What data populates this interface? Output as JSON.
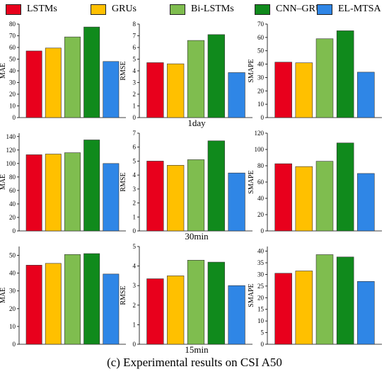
{
  "caption": "(c) Experimental results on CSI A50",
  "legend": [
    {
      "name": "LSTMs",
      "color": "#e8001c"
    },
    {
      "name": "GRUs",
      "color": "#ffc000"
    },
    {
      "name": "Bi-LSTMs",
      "color": "#7fbd4f"
    },
    {
      "name": "CNN–GRUs",
      "color": "#108a1c"
    },
    {
      "name": "EL-MTSA",
      "color": "#2f86e6"
    }
  ],
  "row_labels": [
    "1day",
    "30min",
    "15min"
  ],
  "chart_data": [
    {
      "type": "bar",
      "categories": [
        "LSTMs",
        "GRUs",
        "Bi-LSTMs",
        "CNN–GRUs",
        "EL-MTSA"
      ],
      "values": [
        57,
        59.5,
        69,
        77.5,
        48
      ],
      "ylabel": "MAE",
      "ylim": [
        0,
        80
      ],
      "yticks": [
        0,
        10,
        20,
        30,
        40,
        50,
        60,
        70,
        80
      ]
    },
    {
      "type": "bar",
      "categories": [
        "LSTMs",
        "GRUs",
        "Bi-LSTMs",
        "CNN–GRUs",
        "EL-MTSA"
      ],
      "values": [
        4.7,
        4.6,
        6.6,
        7.1,
        3.85
      ],
      "ylabel": "RMSE",
      "ylim": [
        0,
        8
      ],
      "yticks": [
        0,
        1,
        2,
        3,
        4,
        5,
        6,
        7,
        8
      ]
    },
    {
      "type": "bar",
      "categories": [
        "LSTMs",
        "GRUs",
        "Bi-LSTMs",
        "CNN–GRUs",
        "EL-MTSA"
      ],
      "values": [
        41.5,
        41,
        59,
        65,
        34
      ],
      "ylabel": "SMAPE",
      "ylim": [
        0,
        70
      ],
      "yticks": [
        0,
        10,
        20,
        30,
        40,
        50,
        60,
        70
      ]
    },
    {
      "type": "bar",
      "categories": [
        "LSTMs",
        "GRUs",
        "Bi-LSTMs",
        "CNN–GRUs",
        "EL-MTSA"
      ],
      "values": [
        113,
        114,
        116,
        135,
        100
      ],
      "ylabel": "MAE",
      "ylim": [
        0,
        145
      ],
      "yticks": [
        0,
        20,
        40,
        60,
        80,
        100,
        120,
        140
      ]
    },
    {
      "type": "bar",
      "categories": [
        "LSTMs",
        "GRUs",
        "Bi-LSTMs",
        "CNN–GRUs",
        "EL-MTSA"
      ],
      "values": [
        5.0,
        4.7,
        5.1,
        6.45,
        4.15
      ],
      "ylabel": "RMSE",
      "ylim": [
        0,
        7
      ],
      "yticks": [
        0,
        1,
        2,
        3,
        4,
        5,
        6,
        7
      ]
    },
    {
      "type": "bar",
      "categories": [
        "LSTMs",
        "GRUs",
        "Bi-LSTMs",
        "CNN–GRUs",
        "EL-MTSA"
      ],
      "values": [
        82.5,
        79,
        85.5,
        108,
        70.5
      ],
      "ylabel": "SMAPE",
      "ylim": [
        0,
        120
      ],
      "yticks": [
        0,
        20,
        40,
        60,
        80,
        100,
        120
      ]
    },
    {
      "type": "bar",
      "categories": [
        "LSTMs",
        "GRUs",
        "Bi-LSTMs",
        "CNN–GRUs",
        "EL-MTSA"
      ],
      "values": [
        44.5,
        45.5,
        50.5,
        51,
        39.5
      ],
      "ylabel": "MAE",
      "ylim": [
        0,
        55
      ],
      "yticks": [
        0,
        10,
        20,
        30,
        40,
        50
      ]
    },
    {
      "type": "bar",
      "categories": [
        "LSTMs",
        "GRUs",
        "Bi-LSTMs",
        "CNN–GRUs",
        "EL-MTSA"
      ],
      "values": [
        3.35,
        3.5,
        4.3,
        4.2,
        3.0
      ],
      "ylabel": "RMSE",
      "ylim": [
        0,
        5
      ],
      "yticks": [
        0,
        1,
        2,
        3,
        4,
        5
      ]
    },
    {
      "type": "bar",
      "categories": [
        "LSTMs",
        "GRUs",
        "Bi-LSTMs",
        "CNN–GRUs",
        "EL-MTSA"
      ],
      "values": [
        30.5,
        31.5,
        38.5,
        37.5,
        27
      ],
      "ylabel": "SMAPE",
      "ylim": [
        0,
        42
      ],
      "yticks": [
        0,
        5,
        10,
        15,
        20,
        25,
        30,
        35,
        40
      ]
    }
  ]
}
